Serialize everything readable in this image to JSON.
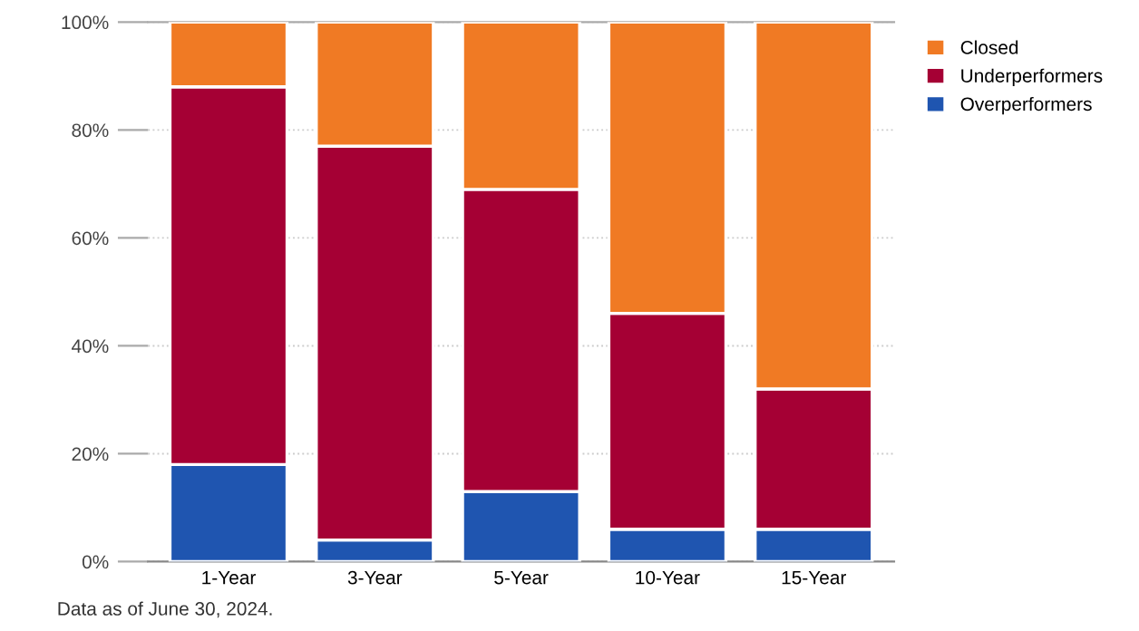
{
  "chart_data": {
    "type": "bar",
    "stacked": true,
    "categories": [
      "1-Year",
      "3-Year",
      "5-Year",
      "10-Year",
      "15-Year"
    ],
    "series": [
      {
        "name": "Overperformers",
        "color": "#1f55b0",
        "values": [
          18,
          4,
          13,
          6,
          6
        ]
      },
      {
        "name": "Underperformers",
        "color": "#a50034",
        "values": [
          70,
          73,
          56,
          40,
          26
        ]
      },
      {
        "name": "Closed",
        "color": "#f07a24",
        "values": [
          12,
          23,
          31,
          54,
          68
        ]
      }
    ],
    "ylim": [
      0,
      100
    ],
    "yticks": [
      {
        "value": 0,
        "label": "0%"
      },
      {
        "value": 20,
        "label": "20%"
      },
      {
        "value": 40,
        "label": "40%"
      },
      {
        "value": 60,
        "label": "60%"
      },
      {
        "value": 80,
        "label": "80%"
      },
      {
        "value": 100,
        "label": "100%"
      }
    ],
    "grid": "y",
    "legend": "top right",
    "annotations": [
      "Data as of June 30, 2024."
    ]
  }
}
